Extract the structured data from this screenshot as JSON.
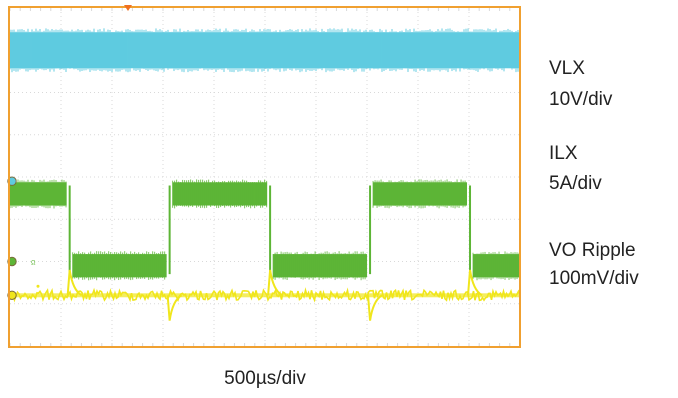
{
  "chart_data": {
    "type": "line",
    "title": "",
    "time_scale": "500µs/div",
    "grid": true,
    "x_divisions": 10,
    "y_divisions": 8,
    "series": [
      {
        "name": "VLX",
        "scale": "10V/div",
        "color": "#5fcbe0",
        "ground_marker_div": 3.9,
        "transitions_div": [],
        "high_level_div": 7.0,
        "low_level_div": 7.0,
        "noise_band_div": 0.85
      },
      {
        "name": "ILX",
        "scale": "5A/div",
        "color": "#5db536",
        "ground_marker_div": 2.0,
        "high_level_div": 3.6,
        "low_level_div": 1.9,
        "noise_band_div": 0.55,
        "transitions_div": [
          1.17,
          3.13,
          5.1,
          7.06,
          9.02
        ],
        "start_state": "high"
      },
      {
        "name": "VO Ripple",
        "scale": "100mV/div",
        "color": "#f0e61c",
        "ground_marker_div": 1.2,
        "level_div": 1.2,
        "noise_band_div": 0.12,
        "spikes_div": [
          {
            "x": 1.17,
            "dir": "up"
          },
          {
            "x": 3.13,
            "dir": "down"
          },
          {
            "x": 5.1,
            "dir": "up"
          },
          {
            "x": 7.06,
            "dir": "down"
          },
          {
            "x": 9.02,
            "dir": "up"
          }
        ]
      }
    ]
  },
  "labels": {
    "ch1_name": "VLX",
    "ch1_scale": "10V/div",
    "ch2_name": "ILX",
    "ch2_scale": "5A/div",
    "ch3_name": "VO Ripple",
    "ch3_scale": "100mV/div",
    "time_scale": "500µs/div"
  },
  "colors": {
    "frame": "#f0a030",
    "grid": "#d9d9d9",
    "background": "#ffffff"
  }
}
